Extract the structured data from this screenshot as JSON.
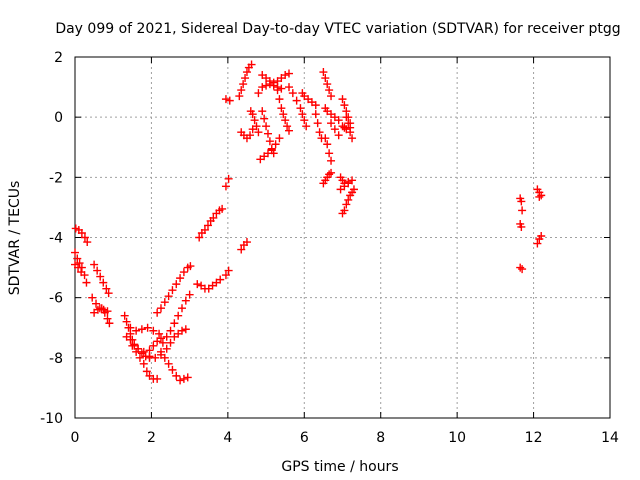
{
  "chart_data": {
    "type": "scatter",
    "title": "Day 099 of 2021, Sidereal Day-to-day VTEC variation (SDTVAR) for receiver ptgg",
    "xlabel": "GPS time / hours",
    "ylabel": "SDTVAR / TECUs",
    "xlim": [
      0,
      14
    ],
    "ylim": [
      -10,
      2
    ],
    "xticks": [
      "0",
      "2",
      "4",
      "6",
      "8",
      "10",
      "12",
      "14"
    ],
    "yticks": [
      "-10",
      "-8",
      "-6",
      "-4",
      "-2",
      "0",
      "2"
    ],
    "grid": true,
    "marker": "+",
    "colors": {
      "series": "#ff0000",
      "grid": "#a0a0a0",
      "axis": "#000000"
    },
    "series": [
      {
        "values": [
          [
            0.02,
            -3.7
          ],
          [
            0.1,
            -3.75
          ],
          [
            0.18,
            -3.85
          ],
          [
            0.26,
            -4.0
          ],
          [
            0.32,
            -4.15
          ],
          [
            0.0,
            -4.5
          ],
          [
            0.06,
            -4.7
          ],
          [
            0.12,
            -4.85
          ],
          [
            0.18,
            -5.0
          ],
          [
            0.25,
            -5.25
          ],
          [
            0.3,
            -5.5
          ],
          [
            0.0,
            -4.9
          ],
          [
            0.08,
            -5.0
          ],
          [
            0.16,
            -5.15
          ],
          [
            0.5,
            -4.9
          ],
          [
            0.58,
            -5.1
          ],
          [
            0.66,
            -5.3
          ],
          [
            0.74,
            -5.5
          ],
          [
            0.82,
            -5.7
          ],
          [
            0.88,
            -5.85
          ],
          [
            0.45,
            -6.0
          ],
          [
            0.55,
            -6.2
          ],
          [
            0.65,
            -6.35
          ],
          [
            0.75,
            -6.4
          ],
          [
            0.85,
            -6.45
          ],
          [
            0.5,
            -6.5
          ],
          [
            0.6,
            -6.4
          ],
          [
            0.7,
            -6.35
          ],
          [
            0.78,
            -6.5
          ],
          [
            0.85,
            -6.7
          ],
          [
            0.9,
            -6.85
          ],
          [
            1.3,
            -6.6
          ],
          [
            1.35,
            -6.8
          ],
          [
            1.4,
            -7.0
          ],
          [
            1.45,
            -7.2
          ],
          [
            1.5,
            -7.4
          ],
          [
            1.55,
            -7.6
          ],
          [
            1.6,
            -7.8
          ],
          [
            1.7,
            -8.0
          ],
          [
            1.8,
            -8.2
          ],
          [
            1.88,
            -8.45
          ],
          [
            1.95,
            -8.6
          ],
          [
            2.05,
            -8.7
          ],
          [
            2.15,
            -8.7
          ],
          [
            1.35,
            -7.3
          ],
          [
            1.45,
            -7.4
          ],
          [
            1.55,
            -7.55
          ],
          [
            1.65,
            -7.7
          ],
          [
            1.75,
            -7.85
          ],
          [
            1.85,
            -7.95
          ],
          [
            1.95,
            -8.0
          ],
          [
            1.45,
            -7.0
          ],
          [
            1.6,
            -7.1
          ],
          [
            1.75,
            -7.05
          ],
          [
            1.9,
            -7.0
          ],
          [
            2.05,
            -7.1
          ],
          [
            2.2,
            -7.2
          ],
          [
            1.5,
            -7.6
          ],
          [
            1.65,
            -7.7
          ],
          [
            1.8,
            -7.8
          ],
          [
            1.95,
            -7.95
          ],
          [
            2.1,
            -8.0
          ],
          [
            2.25,
            -7.9
          ],
          [
            2.4,
            -7.7
          ],
          [
            2.5,
            -7.5
          ],
          [
            2.6,
            -7.3
          ],
          [
            2.7,
            -7.2
          ],
          [
            2.8,
            -7.1
          ],
          [
            2.9,
            -7.05
          ],
          [
            2.15,
            -6.5
          ],
          [
            2.25,
            -6.35
          ],
          [
            2.35,
            -6.15
          ],
          [
            2.45,
            -5.95
          ],
          [
            2.55,
            -5.75
          ],
          [
            2.65,
            -5.55
          ],
          [
            2.75,
            -5.35
          ],
          [
            2.85,
            -5.15
          ],
          [
            2.95,
            -5.0
          ],
          [
            3.02,
            -4.95
          ],
          [
            2.3,
            -7.5
          ],
          [
            2.4,
            -7.3
          ],
          [
            2.5,
            -7.1
          ],
          [
            2.6,
            -6.85
          ],
          [
            2.7,
            -6.6
          ],
          [
            2.8,
            -6.35
          ],
          [
            2.9,
            -6.1
          ],
          [
            3.0,
            -5.9
          ],
          [
            2.25,
            -7.8
          ],
          [
            2.35,
            -8.0
          ],
          [
            2.45,
            -8.2
          ],
          [
            2.55,
            -8.4
          ],
          [
            2.65,
            -8.6
          ],
          [
            2.75,
            -8.75
          ],
          [
            2.85,
            -8.7
          ],
          [
            2.95,
            -8.65
          ],
          [
            1.95,
            -7.75
          ],
          [
            2.05,
            -7.6
          ],
          [
            2.15,
            -7.45
          ],
          [
            2.25,
            -7.35
          ],
          [
            3.2,
            -5.55
          ],
          [
            3.3,
            -5.6
          ],
          [
            3.4,
            -5.7
          ],
          [
            3.5,
            -5.7
          ],
          [
            3.6,
            -5.6
          ],
          [
            3.7,
            -5.5
          ],
          [
            3.8,
            -5.4
          ],
          [
            3.25,
            -4.0
          ],
          [
            3.32,
            -3.85
          ],
          [
            3.4,
            -3.75
          ],
          [
            3.48,
            -3.6
          ],
          [
            3.55,
            -3.45
          ],
          [
            3.62,
            -3.35
          ],
          [
            3.7,
            -3.2
          ],
          [
            3.78,
            -3.1
          ],
          [
            3.85,
            -3.05
          ],
          [
            3.95,
            -5.25
          ],
          [
            4.02,
            -5.1
          ],
          [
            4.35,
            -4.4
          ],
          [
            4.42,
            -4.25
          ],
          [
            4.5,
            -4.15
          ],
          [
            3.95,
            -2.3
          ],
          [
            4.02,
            -2.05
          ],
          [
            3.95,
            0.6
          ],
          [
            4.05,
            0.55
          ],
          [
            4.3,
            0.7
          ],
          [
            4.35,
            0.9
          ],
          [
            4.4,
            1.1
          ],
          [
            4.45,
            1.3
          ],
          [
            4.5,
            1.5
          ],
          [
            4.55,
            1.65
          ],
          [
            4.62,
            1.75
          ],
          [
            4.35,
            -0.5
          ],
          [
            4.42,
            -0.6
          ],
          [
            4.5,
            -0.7
          ],
          [
            4.58,
            -0.6
          ],
          [
            4.65,
            -0.4
          ],
          [
            4.6,
            0.2
          ],
          [
            4.65,
            0.1
          ],
          [
            4.7,
            -0.1
          ],
          [
            4.75,
            -0.3
          ],
          [
            4.8,
            -0.5
          ],
          [
            4.8,
            0.8
          ],
          [
            4.9,
            1.0
          ],
          [
            5.0,
            1.05
          ],
          [
            5.1,
            1.1
          ],
          [
            5.2,
            1.05
          ],
          [
            5.3,
            1.0
          ],
          [
            5.4,
            0.95
          ],
          [
            4.9,
            1.4
          ],
          [
            5.0,
            1.3
          ],
          [
            5.1,
            1.2
          ],
          [
            5.2,
            1.15
          ],
          [
            5.3,
            1.2
          ],
          [
            5.4,
            1.3
          ],
          [
            5.5,
            1.4
          ],
          [
            5.6,
            1.45
          ],
          [
            4.9,
            0.2
          ],
          [
            4.95,
            -0.05
          ],
          [
            5.0,
            -0.3
          ],
          [
            5.05,
            -0.55
          ],
          [
            5.1,
            -0.8
          ],
          [
            5.15,
            -1.05
          ],
          [
            5.2,
            -1.2
          ],
          [
            4.85,
            -1.4
          ],
          [
            4.95,
            -1.3
          ],
          [
            5.05,
            -1.2
          ],
          [
            5.15,
            -1.1
          ],
          [
            5.25,
            -0.9
          ],
          [
            5.35,
            -0.7
          ],
          [
            5.3,
            0.9
          ],
          [
            5.35,
            0.6
          ],
          [
            5.4,
            0.3
          ],
          [
            5.45,
            0.1
          ],
          [
            5.5,
            -0.1
          ],
          [
            5.55,
            -0.3
          ],
          [
            5.6,
            -0.45
          ],
          [
            5.6,
            1.0
          ],
          [
            5.7,
            0.8
          ],
          [
            5.8,
            0.55
          ],
          [
            5.95,
            0.8
          ],
          [
            6.0,
            0.7
          ],
          [
            6.1,
            0.6
          ],
          [
            6.2,
            0.5
          ],
          [
            6.3,
            0.4
          ],
          [
            5.9,
            0.3
          ],
          [
            5.95,
            0.1
          ],
          [
            6.0,
            -0.1
          ],
          [
            6.05,
            -0.3
          ],
          [
            6.3,
            0.1
          ],
          [
            6.35,
            -0.2
          ],
          [
            6.4,
            -0.5
          ],
          [
            6.45,
            -0.7
          ],
          [
            6.5,
            1.5
          ],
          [
            6.55,
            1.3
          ],
          [
            6.6,
            1.1
          ],
          [
            6.65,
            0.9
          ],
          [
            6.7,
            0.7
          ],
          [
            6.55,
            0.3
          ],
          [
            6.6,
            0.2
          ],
          [
            6.7,
            0.1
          ],
          [
            6.8,
            0.0
          ],
          [
            6.9,
            -0.1
          ],
          [
            6.55,
            -0.7
          ],
          [
            6.6,
            -0.9
          ],
          [
            6.65,
            -1.2
          ],
          [
            6.7,
            -1.45
          ],
          [
            6.5,
            -2.2
          ],
          [
            6.55,
            -2.1
          ],
          [
            6.6,
            -2.0
          ],
          [
            6.65,
            -1.9
          ],
          [
            6.7,
            -1.85
          ],
          [
            6.7,
            -0.2
          ],
          [
            6.8,
            -0.4
          ],
          [
            6.9,
            -0.6
          ],
          [
            7.0,
            0.6
          ],
          [
            7.05,
            0.4
          ],
          [
            7.1,
            0.2
          ],
          [
            7.15,
            0.0
          ],
          [
            7.2,
            -0.2
          ],
          [
            7.1,
            0.0
          ],
          [
            7.15,
            -0.2
          ],
          [
            7.2,
            -0.35
          ],
          [
            7.0,
            -0.3
          ],
          [
            7.05,
            -0.35
          ],
          [
            7.1,
            -0.4
          ],
          [
            7.2,
            -0.5
          ],
          [
            7.25,
            -0.7
          ],
          [
            6.95,
            -2.0
          ],
          [
            7.0,
            -2.1
          ],
          [
            7.05,
            -2.2
          ],
          [
            7.15,
            -2.15
          ],
          [
            7.25,
            -2.1
          ],
          [
            6.95,
            -2.4
          ],
          [
            7.05,
            -2.3
          ],
          [
            7.15,
            -2.2
          ],
          [
            7.0,
            -3.2
          ],
          [
            7.05,
            -3.1
          ],
          [
            7.1,
            -2.9
          ],
          [
            7.15,
            -2.75
          ],
          [
            7.2,
            -2.6
          ],
          [
            7.25,
            -2.5
          ],
          [
            7.3,
            -2.4
          ],
          [
            11.65,
            -2.7
          ],
          [
            11.68,
            -2.8
          ],
          [
            11.7,
            -3.1
          ],
          [
            11.65,
            -3.55
          ],
          [
            11.68,
            -3.65
          ],
          [
            11.65,
            -5.0
          ],
          [
            11.7,
            -5.05
          ],
          [
            12.1,
            -2.4
          ],
          [
            12.15,
            -2.5
          ],
          [
            12.2,
            -2.6
          ],
          [
            12.15,
            -2.65
          ],
          [
            12.1,
            -4.2
          ],
          [
            12.15,
            -4.05
          ],
          [
            12.2,
            -3.95
          ]
        ]
      }
    ]
  }
}
